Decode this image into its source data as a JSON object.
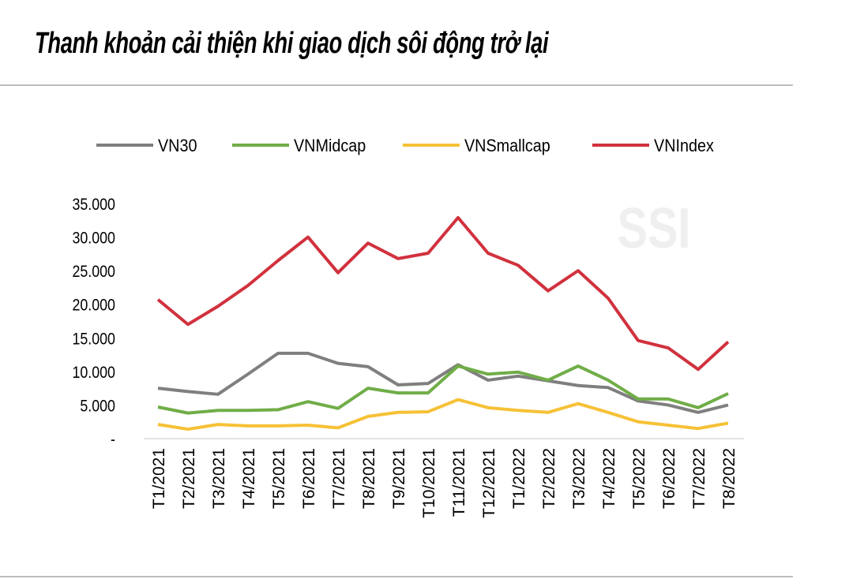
{
  "chart_data": {
    "type": "line",
    "title": "Thanh khoản cải thiện khi giao dịch sôi động trở lại",
    "watermark": "SSI",
    "categories": [
      "T1/2021",
      "T2/2021",
      "T3/2021",
      "T4/2021",
      "T5/2021",
      "T6/2021",
      "T7/2021",
      "T8/2021",
      "T9/2021",
      "T10/2021",
      "T11/2021",
      "T12/2021",
      "T1/2022",
      "T2/2022",
      "T3/2022",
      "T4/2022",
      "T5/2022",
      "T6/2022",
      "T7/2022",
      "T8/2022"
    ],
    "ylim": [
      0,
      35000
    ],
    "yticks": [
      0,
      5000,
      10000,
      15000,
      20000,
      25000,
      30000,
      35000
    ],
    "ytick_labels": [
      "-",
      "5.000",
      "10.000",
      "15.000",
      "20.000",
      "25.000",
      "30.000",
      "35.000"
    ],
    "grid": false,
    "legend_placement": "top",
    "series": [
      {
        "name": "VN30",
        "color": "#7f7f7f",
        "values": [
          7500,
          7000,
          6600,
          9600,
          12700,
          12700,
          11200,
          10700,
          8000,
          8200,
          11000,
          8700,
          9300,
          8600,
          7900,
          7600,
          5600,
          5000,
          3900,
          5000
        ]
      },
      {
        "name": "VNMidcap",
        "color": "#70ad47",
        "values": [
          4700,
          3800,
          4200,
          4200,
          4300,
          5500,
          4500,
          7500,
          6800,
          6800,
          10800,
          9600,
          9900,
          8700,
          10800,
          8700,
          5900,
          5900,
          4600,
          6700
        ]
      },
      {
        "name": "VNSmallcap",
        "color": "#f6c136",
        "values": [
          2100,
          1400,
          2100,
          1900,
          1900,
          2000,
          1600,
          3300,
          3900,
          4000,
          5800,
          4600,
          4200,
          3900,
          5200,
          3900,
          2500,
          2000,
          1500,
          2300
        ]
      },
      {
        "name": "VNIndex",
        "color": "#d1313d",
        "values": [
          20700,
          17000,
          19700,
          22800,
          26500,
          30000,
          24700,
          29100,
          26800,
          27600,
          32900,
          27600,
          25800,
          22000,
          25000,
          20900,
          14600,
          13500,
          10300,
          14400
        ]
      }
    ]
  }
}
